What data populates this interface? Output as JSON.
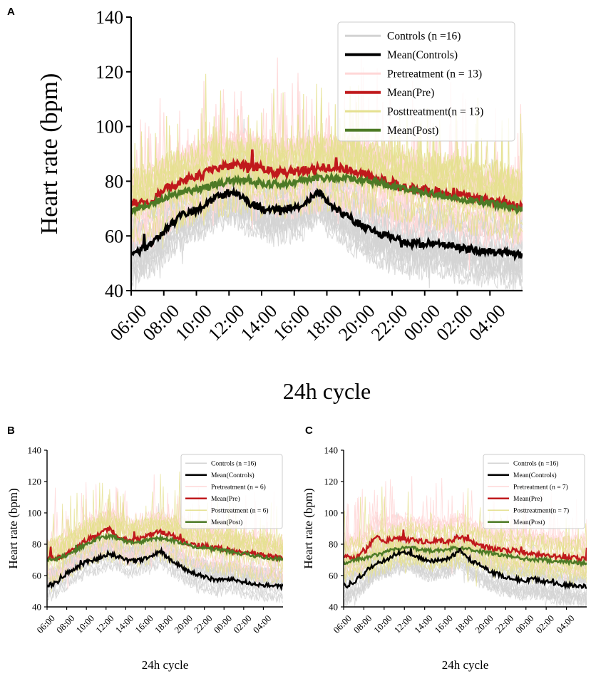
{
  "colors": {
    "controls": "#d3d3d3",
    "mean_controls": "#000000",
    "pre": "#ffd7d7",
    "mean_pre": "#c0191c",
    "post": "#e5e08f",
    "mean_post": "#4d7a26"
  },
  "chart_data": [
    {
      "panel": "A",
      "type": "line",
      "xlabel": "24h cycle",
      "ylabel": "Heart rate (bpm)",
      "ylim": [
        40,
        140
      ],
      "yticks": [
        "40",
        "60",
        "80",
        "100",
        "120",
        "140"
      ],
      "xticks": [
        "06:00",
        "08:00",
        "10:00",
        "12:00",
        "14:00",
        "16:00",
        "18:00",
        "20:00",
        "22:00",
        "00:00",
        "02:00",
        "04:00"
      ],
      "x": [
        0,
        1,
        2,
        3,
        4,
        5,
        6,
        7,
        8,
        9,
        10,
        11,
        12,
        13,
        14,
        15,
        16,
        17,
        18,
        19,
        20,
        21,
        22,
        23
      ],
      "legend_position": "top-right",
      "legend": [
        "Controls (n =16)",
        "Mean(Controls)",
        "Pretreatment (n = 13)",
        "Mean(Pre)",
        "Posttreatment(n = 13)",
        "Mean(Post)"
      ],
      "series": [
        {
          "name": "Mean(Controls)",
          "values": [
            53,
            56,
            62,
            68,
            70,
            74,
            76,
            72,
            69,
            70,
            71,
            76,
            70,
            66,
            62,
            60,
            58,
            57,
            58,
            56,
            55,
            54,
            54,
            53
          ]
        },
        {
          "name": "Mean(Pre)",
          "values": [
            72,
            72,
            77,
            80,
            82,
            85,
            86,
            86,
            84,
            83,
            84,
            85,
            85,
            84,
            82,
            80,
            78,
            77,
            76,
            75,
            74,
            73,
            72,
            71
          ]
        },
        {
          "name": "Mean(Post)",
          "values": [
            69,
            71,
            74,
            76,
            77,
            79,
            80,
            80,
            79,
            79,
            80,
            81,
            81,
            81,
            80,
            79,
            77,
            76,
            75,
            74,
            73,
            72,
            71,
            69
          ]
        }
      ]
    },
    {
      "panel": "B",
      "type": "line",
      "xlabel": "24h cycle",
      "ylabel": "Heart rate (bpm)",
      "ylim": [
        40,
        140
      ],
      "yticks": [
        "40",
        "60",
        "80",
        "100",
        "120",
        "140"
      ],
      "xticks": [
        "06:00",
        "08:00",
        "10:00",
        "12:00",
        "14:00",
        "16:00",
        "18:00",
        "20:00",
        "22:00",
        "00:00",
        "02:00",
        "04:00"
      ],
      "x": [
        0,
        1,
        2,
        3,
        4,
        5,
        6,
        7,
        8,
        9,
        10,
        11,
        12,
        13,
        14,
        15,
        16,
        17,
        18,
        19,
        20,
        21,
        22,
        23
      ],
      "legend_position": "top-right",
      "legend": [
        "Controls (n =16)",
        "Mean(Controls)",
        "Pretreatment (n = 6)",
        "Mean(Pre)",
        "Posttreatment (n = 6)",
        "Mean(Post)"
      ],
      "series": [
        {
          "name": "Mean(Controls)",
          "values": [
            53,
            56,
            62,
            66,
            69,
            71,
            74,
            72,
            69,
            70,
            71,
            76,
            70,
            66,
            62,
            60,
            58,
            57,
            58,
            56,
            55,
            54,
            54,
            53
          ]
        },
        {
          "name": "Mean(Pre)",
          "values": [
            71,
            71,
            74,
            79,
            83,
            86,
            90,
            85,
            82,
            83,
            86,
            88,
            86,
            83,
            80,
            79,
            78,
            77,
            76,
            75,
            74,
            73,
            72,
            71
          ]
        },
        {
          "name": "Mean(Post)",
          "values": [
            70,
            71,
            73,
            77,
            80,
            84,
            85,
            84,
            81,
            81,
            83,
            84,
            83,
            81,
            79,
            78,
            77,
            76,
            75,
            74,
            73,
            72,
            71,
            70
          ]
        }
      ]
    },
    {
      "panel": "C",
      "type": "line",
      "xlabel": "24h cycle",
      "ylabel": "Heart rate (bpm)",
      "ylim": [
        40,
        140
      ],
      "yticks": [
        "40",
        "60",
        "80",
        "100",
        "120",
        "140"
      ],
      "xticks": [
        "06:00",
        "08:00",
        "10:00",
        "12:00",
        "14:00",
        "16:00",
        "18:00",
        "20:00",
        "22:00",
        "00:00",
        "02:00",
        "04:00"
      ],
      "x": [
        0,
        1,
        2,
        3,
        4,
        5,
        6,
        7,
        8,
        9,
        10,
        11,
        12,
        13,
        14,
        15,
        16,
        17,
        18,
        19,
        20,
        21,
        22,
        23
      ],
      "legend_position": "top-right",
      "legend": [
        "Controls (n =16)",
        "Mean(Controls)",
        "Pretreatment (n = 7)",
        "Mean(Pre)",
        "Posttreatment(n = 7)",
        "Mean(Post)"
      ],
      "series": [
        {
          "name": "Mean(Controls)",
          "values": [
            53,
            56,
            62,
            68,
            70,
            74,
            75,
            72,
            69,
            70,
            71,
            76,
            70,
            66,
            62,
            60,
            58,
            57,
            58,
            56,
            55,
            54,
            54,
            53
          ]
        },
        {
          "name": "Mean(Pre)",
          "values": [
            72,
            71,
            75,
            85,
            82,
            84,
            83,
            82,
            81,
            82,
            82,
            85,
            82,
            79,
            77,
            76,
            76,
            75,
            74,
            73,
            72,
            72,
            71,
            70
          ]
        },
        {
          "name": "Mean(Post)",
          "values": [
            68,
            70,
            71,
            73,
            75,
            77,
            78,
            77,
            76,
            76,
            77,
            78,
            77,
            75,
            74,
            73,
            72,
            71,
            70,
            70,
            69,
            69,
            68,
            68
          ]
        }
      ]
    }
  ]
}
